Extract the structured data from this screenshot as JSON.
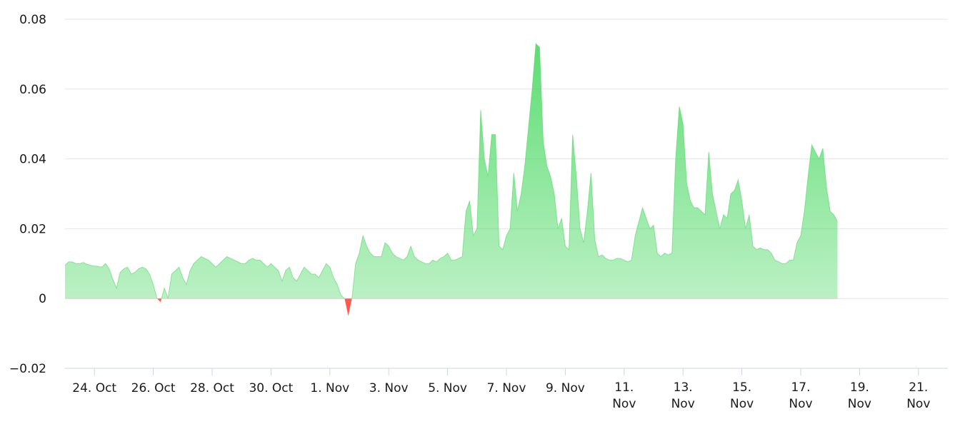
{
  "chart_data": {
    "type": "area",
    "title": "",
    "xlabel": "",
    "ylabel": "",
    "ylim": [
      -0.02,
      0.08
    ],
    "yticks": [
      -0.02,
      0,
      0.02,
      0.04,
      0.06,
      0.08
    ],
    "ytick_labels": [
      "−0.02",
      "0",
      "0.02",
      "0.04",
      "0.06",
      "0.08"
    ],
    "xlim": [
      "2023-10-23",
      "2023-11-22"
    ],
    "xticks": [
      "2023-10-24",
      "2023-10-26",
      "2023-10-28",
      "2023-10-30",
      "2023-11-01",
      "2023-11-03",
      "2023-11-05",
      "2023-11-07",
      "2023-11-09",
      "2023-11-11",
      "2023-11-13",
      "2023-11-15",
      "2023-11-17",
      "2023-11-19",
      "2023-11-21"
    ],
    "xtick_labels": [
      [
        "24. Oct"
      ],
      [
        "26. Oct"
      ],
      [
        "28. Oct"
      ],
      [
        "30. Oct"
      ],
      [
        "1. Nov"
      ],
      [
        "3. Nov"
      ],
      [
        "5. Nov"
      ],
      [
        "7. Nov"
      ],
      [
        "9. Nov"
      ],
      [
        "11.",
        "Nov"
      ],
      [
        "13.",
        "Nov"
      ],
      [
        "15.",
        "Nov"
      ],
      [
        "17.",
        "Nov"
      ],
      [
        "19.",
        "Nov"
      ],
      [
        "21.",
        "Nov"
      ]
    ],
    "grid": true,
    "legend": "none",
    "colors": {
      "positive": "#4cd964",
      "negative": "#ff3b30",
      "grid": "#e6e6e6",
      "axis": "#ccd6eb"
    },
    "x_step_hours": 3,
    "series": [
      {
        "values": [
          0.0095,
          0.0105,
          0.0105,
          0.01,
          0.01,
          0.0103,
          0.0098,
          0.0095,
          0.0093,
          0.0092,
          0.009,
          0.01,
          0.0085,
          0.0055,
          0.003,
          0.0075,
          0.0085,
          0.009,
          0.007,
          0.0075,
          0.0085,
          0.009,
          0.0085,
          0.007,
          0.004,
          0.0,
          -0.001,
          0.003,
          0.0,
          0.007,
          0.008,
          0.009,
          0.006,
          0.004,
          0.008,
          0.01,
          0.011,
          0.012,
          0.0115,
          0.011,
          0.01,
          0.009,
          0.01,
          0.011,
          0.012,
          0.0115,
          0.011,
          0.0105,
          0.01,
          0.01,
          0.011,
          0.0115,
          0.011,
          0.011,
          0.01,
          0.009,
          0.01,
          0.009,
          0.008,
          0.005,
          0.008,
          0.009,
          0.006,
          0.005,
          0.007,
          0.009,
          0.008,
          0.007,
          0.007,
          0.006,
          0.008,
          0.01,
          0.009,
          0.006,
          0.004,
          0.001,
          0.0,
          -0.005,
          0.0,
          0.01,
          0.013,
          0.018,
          0.015,
          0.013,
          0.012,
          0.012,
          0.012,
          0.016,
          0.015,
          0.013,
          0.012,
          0.0115,
          0.011,
          0.012,
          0.015,
          0.012,
          0.011,
          0.0105,
          0.01,
          0.01,
          0.011,
          0.0105,
          0.0115,
          0.012,
          0.013,
          0.011,
          0.011,
          0.0115,
          0.012,
          0.025,
          0.028,
          0.018,
          0.02,
          0.054,
          0.04,
          0.035,
          0.047,
          0.047,
          0.015,
          0.014,
          0.018,
          0.02,
          0.036,
          0.025,
          0.03,
          0.038,
          0.049,
          0.06,
          0.073,
          0.072,
          0.045,
          0.038,
          0.035,
          0.03,
          0.02,
          0.023,
          0.015,
          0.014,
          0.047,
          0.035,
          0.02,
          0.016,
          0.025,
          0.036,
          0.017,
          0.012,
          0.0125,
          0.0115,
          0.011,
          0.011,
          0.0115,
          0.0115,
          0.011,
          0.0105,
          0.011,
          0.018,
          0.022,
          0.026,
          0.023,
          0.02,
          0.021,
          0.013,
          0.012,
          0.013,
          0.0125,
          0.013,
          0.04,
          0.055,
          0.05,
          0.033,
          0.028,
          0.026,
          0.026,
          0.025,
          0.024,
          0.042,
          0.03,
          0.025,
          0.02,
          0.024,
          0.023,
          0.03,
          0.031,
          0.034,
          0.028,
          0.02,
          0.024,
          0.015,
          0.014,
          0.0145,
          0.014,
          0.014,
          0.013,
          0.011,
          0.0105,
          0.01,
          0.01,
          0.011,
          0.011,
          0.016,
          0.018,
          0.025,
          0.035,
          0.044,
          0.042,
          0.04,
          0.043,
          0.032,
          0.025,
          0.024,
          0.022
        ]
      }
    ]
  }
}
